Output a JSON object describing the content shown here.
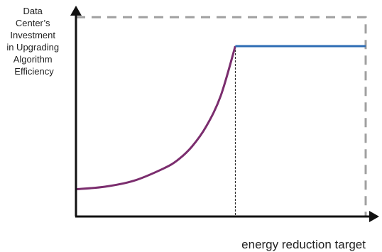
{
  "chart_data": {
    "type": "line",
    "ylabel_lines": [
      "Data",
      "Center’s",
      "Investment",
      "in Upgrading",
      "Algorithm",
      "Efficiency"
    ],
    "xlabel": "energy reduction target",
    "xlim": [
      0,
      1
    ],
    "ylim": [
      0,
      1
    ],
    "axis_ticks": false,
    "grid": false,
    "boundary": {
      "x_max": 1.0,
      "y_max": 1.17
    },
    "threshold_x": 0.55,
    "series": [
      {
        "color": "#7b2d6e",
        "style": "solid",
        "points": [
          [
            0,
            0.16
          ],
          [
            0.1,
            0.175
          ],
          [
            0.2,
            0.21
          ],
          [
            0.3,
            0.28
          ],
          [
            0.35,
            0.33
          ],
          [
            0.4,
            0.41
          ],
          [
            0.45,
            0.53
          ],
          [
            0.5,
            0.71
          ],
          [
            0.55,
            1.0
          ]
        ]
      },
      {
        "color": "#2e6db4",
        "style": "solid",
        "points": [
          [
            0.55,
            1.0
          ],
          [
            1.0,
            1.0
          ]
        ]
      }
    ],
    "colors": {
      "axis": "#111111",
      "boundary": "#a0a0a0",
      "threshold": "#111111"
    }
  }
}
